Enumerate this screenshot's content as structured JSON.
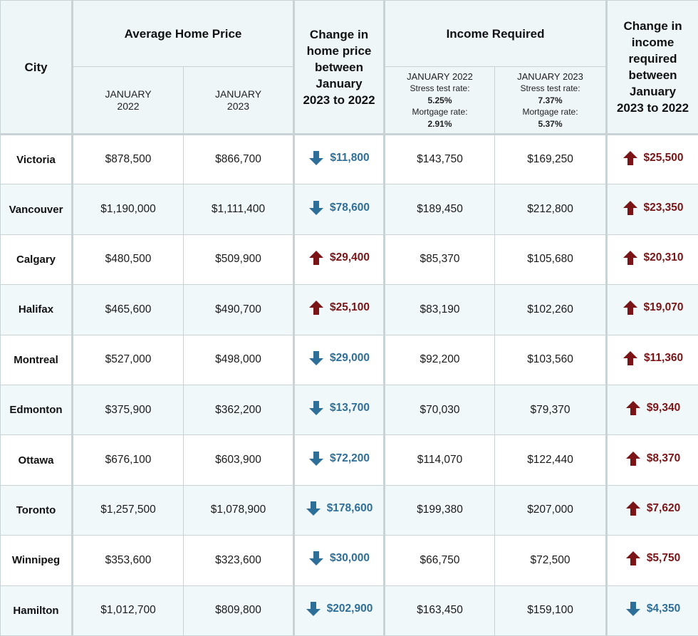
{
  "colors": {
    "down": "#2e6f99",
    "up": "#7a1416",
    "header_bg": "#eef6f8",
    "stripe_bg": "#f1f8fa",
    "border": "#c9d3d6"
  },
  "header": {
    "city": "City",
    "avg_home_price": "Average Home Price",
    "avg_jan2022_line1": "JANUARY",
    "avg_jan2022_line2": "2022",
    "avg_jan2023_line1": "JANUARY",
    "avg_jan2023_line2": "2023",
    "change_home_l1": "Change in",
    "change_home_l2": "home price",
    "change_home_l3": "between",
    "change_home_l4": "January",
    "change_home_l5": "2023 to 2022",
    "income_required": "Income Required",
    "inc_2022": {
      "title": "JANUARY 2022",
      "stress_label": "Stress test rate:",
      "stress_value": "5.25%",
      "mortgage_label": "Mortgage rate:",
      "mortgage_value": "2.91%"
    },
    "inc_2023": {
      "title": "JANUARY 2023",
      "stress_label": "Stress test rate:",
      "stress_value": "7.37%",
      "mortgage_label": "Mortgage rate:",
      "mortgage_value": "5.37%"
    },
    "change_inc_l1": "Change in",
    "change_inc_l2": "income",
    "change_inc_l3": "required",
    "change_inc_l4": "between",
    "change_inc_l5": "January",
    "change_inc_l6": "2023 to 2022"
  },
  "rows": [
    {
      "city": "Victoria",
      "price_2022": "$878,500",
      "price_2023": "$866,700",
      "price_change": "$11,800",
      "price_dir": "down",
      "income_2022": "$143,750",
      "income_2023": "$169,250",
      "income_change": "$25,500",
      "income_dir": "up"
    },
    {
      "city": "Vancouver",
      "price_2022": "$1,190,000",
      "price_2023": "$1,111,400",
      "price_change": "$78,600",
      "price_dir": "down",
      "income_2022": "$189,450",
      "income_2023": "$212,800",
      "income_change": "$23,350",
      "income_dir": "up"
    },
    {
      "city": "Calgary",
      "price_2022": "$480,500",
      "price_2023": "$509,900",
      "price_change": "$29,400",
      "price_dir": "up",
      "income_2022": "$85,370",
      "income_2023": "$105,680",
      "income_change": "$20,310",
      "income_dir": "up"
    },
    {
      "city": "Halifax",
      "price_2022": "$465,600",
      "price_2023": "$490,700",
      "price_change": "$25,100",
      "price_dir": "up",
      "income_2022": "$83,190",
      "income_2023": "$102,260",
      "income_change": "$19,070",
      "income_dir": "up"
    },
    {
      "city": "Montreal",
      "price_2022": "$527,000",
      "price_2023": "$498,000",
      "price_change": "$29,000",
      "price_dir": "down",
      "income_2022": "$92,200",
      "income_2023": "$103,560",
      "income_change": "$11,360",
      "income_dir": "up"
    },
    {
      "city": "Edmonton",
      "price_2022": "$375,900",
      "price_2023": "$362,200",
      "price_change": "$13,700",
      "price_dir": "down",
      "income_2022": "$70,030",
      "income_2023": "$79,370",
      "income_change": "$9,340",
      "income_dir": "up"
    },
    {
      "city": "Ottawa",
      "price_2022": "$676,100",
      "price_2023": "$603,900",
      "price_change": "$72,200",
      "price_dir": "down",
      "income_2022": "$114,070",
      "income_2023": "$122,440",
      "income_change": "$8,370",
      "income_dir": "up"
    },
    {
      "city": "Toronto",
      "price_2022": "$1,257,500",
      "price_2023": "$1,078,900",
      "price_change": "$178,600",
      "price_dir": "down",
      "income_2022": "$199,380",
      "income_2023": "$207,000",
      "income_change": "$7,620",
      "income_dir": "up"
    },
    {
      "city": "Winnipeg",
      "price_2022": "$353,600",
      "price_2023": "$323,600",
      "price_change": "$30,000",
      "price_dir": "down",
      "income_2022": "$66,750",
      "income_2023": "$72,500",
      "income_change": "$5,750",
      "income_dir": "up"
    },
    {
      "city": "Hamilton",
      "price_2022": "$1,012,700",
      "price_2023": "$809,800",
      "price_change": "$202,900",
      "price_dir": "down",
      "income_2022": "$163,450",
      "income_2023": "$159,100",
      "income_change": "$4,350",
      "income_dir": "down"
    }
  ]
}
